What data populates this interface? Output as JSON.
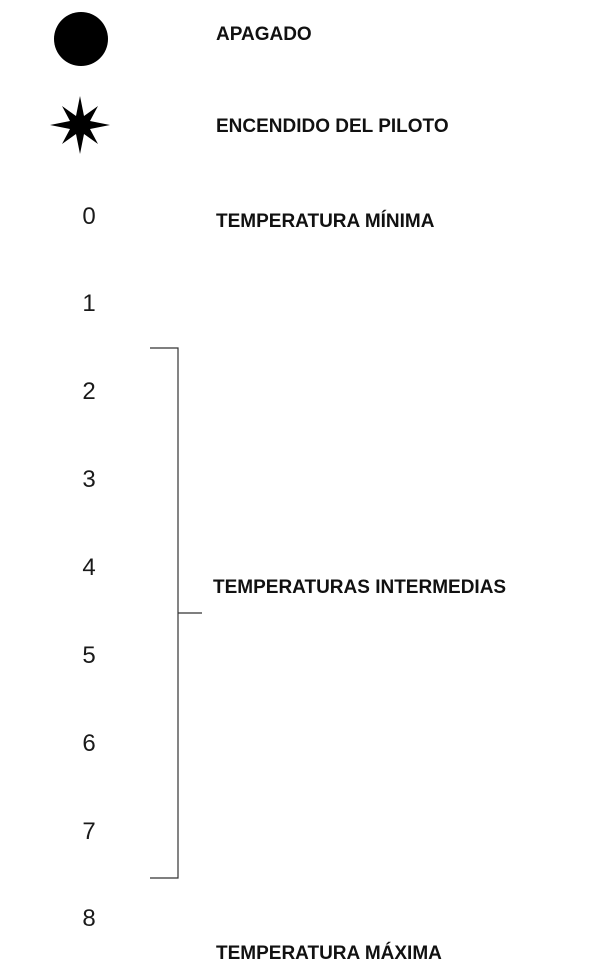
{
  "settings": [
    {
      "symbol_icon": "filled-circle-icon",
      "label": "APAGADO"
    },
    {
      "symbol_icon": "star-burst-icon",
      "label": "ENCENDIDO DEL PILOTO"
    },
    {
      "symbol": "0",
      "label": "TEMPERATURA MÍNIMA"
    },
    {
      "symbol": "1"
    },
    {
      "symbol": "2"
    },
    {
      "symbol": "3"
    },
    {
      "symbol": "4"
    },
    {
      "symbol": "5"
    },
    {
      "symbol": "6"
    },
    {
      "symbol": "7"
    },
    {
      "symbol": "8",
      "label": "TEMPERATURA MÁXIMA"
    }
  ],
  "intermediate_group": {
    "label": "TEMPERATURAS INTERMEDIAS",
    "from_symbol": "2",
    "to_symbol": "7"
  }
}
